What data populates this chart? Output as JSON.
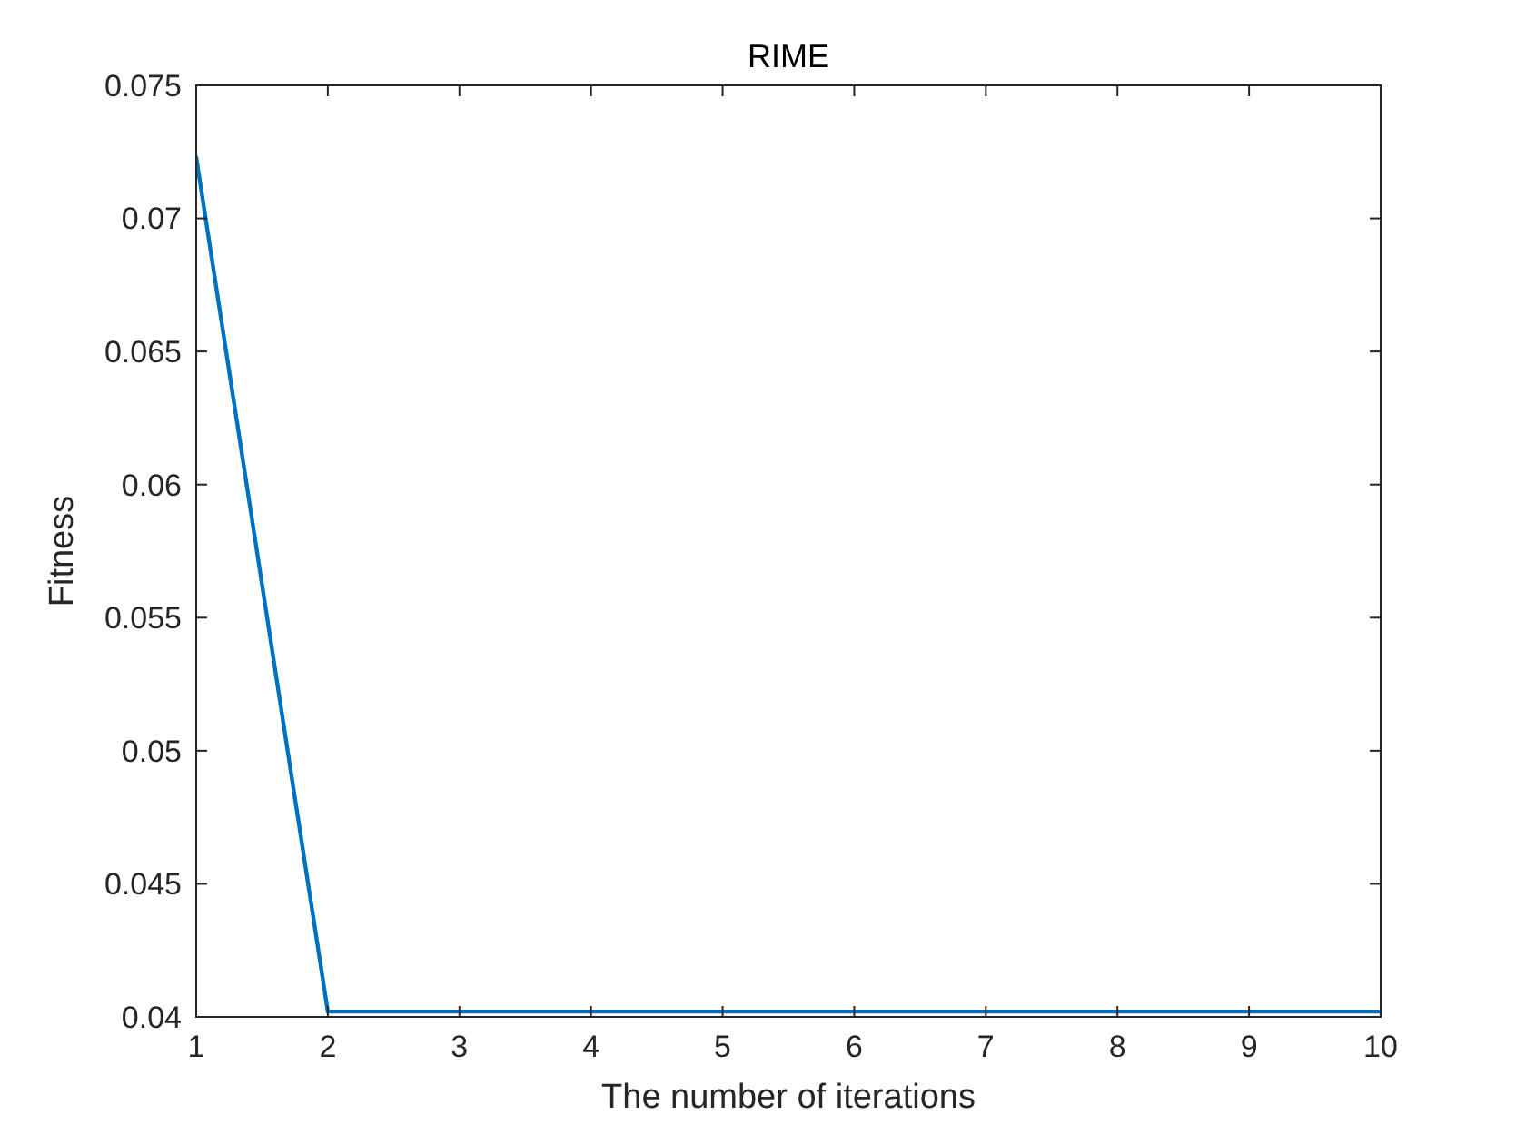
{
  "chart_data": {
    "type": "line",
    "title": "RIME",
    "xlabel": "The number of iterations",
    "ylabel": "Fitness",
    "x": [
      1,
      2,
      3,
      4,
      5,
      6,
      7,
      8,
      9,
      10
    ],
    "series": [
      {
        "color": "#0072bd",
        "values": [
          0.0723,
          0.0402,
          0.0402,
          0.0402,
          0.0402,
          0.0402,
          0.0402,
          0.0402,
          0.0402,
          0.0402
        ]
      }
    ],
    "xlim": [
      1,
      10
    ],
    "xticks": [
      1,
      2,
      3,
      4,
      5,
      6,
      7,
      8,
      9,
      10
    ],
    "ylim": [
      0.04,
      0.075
    ],
    "yticks": [
      0.04,
      0.045,
      0.05,
      0.055,
      0.06,
      0.065,
      0.07,
      0.075
    ],
    "grid": false,
    "marker": "none",
    "line_style": "solid"
  }
}
